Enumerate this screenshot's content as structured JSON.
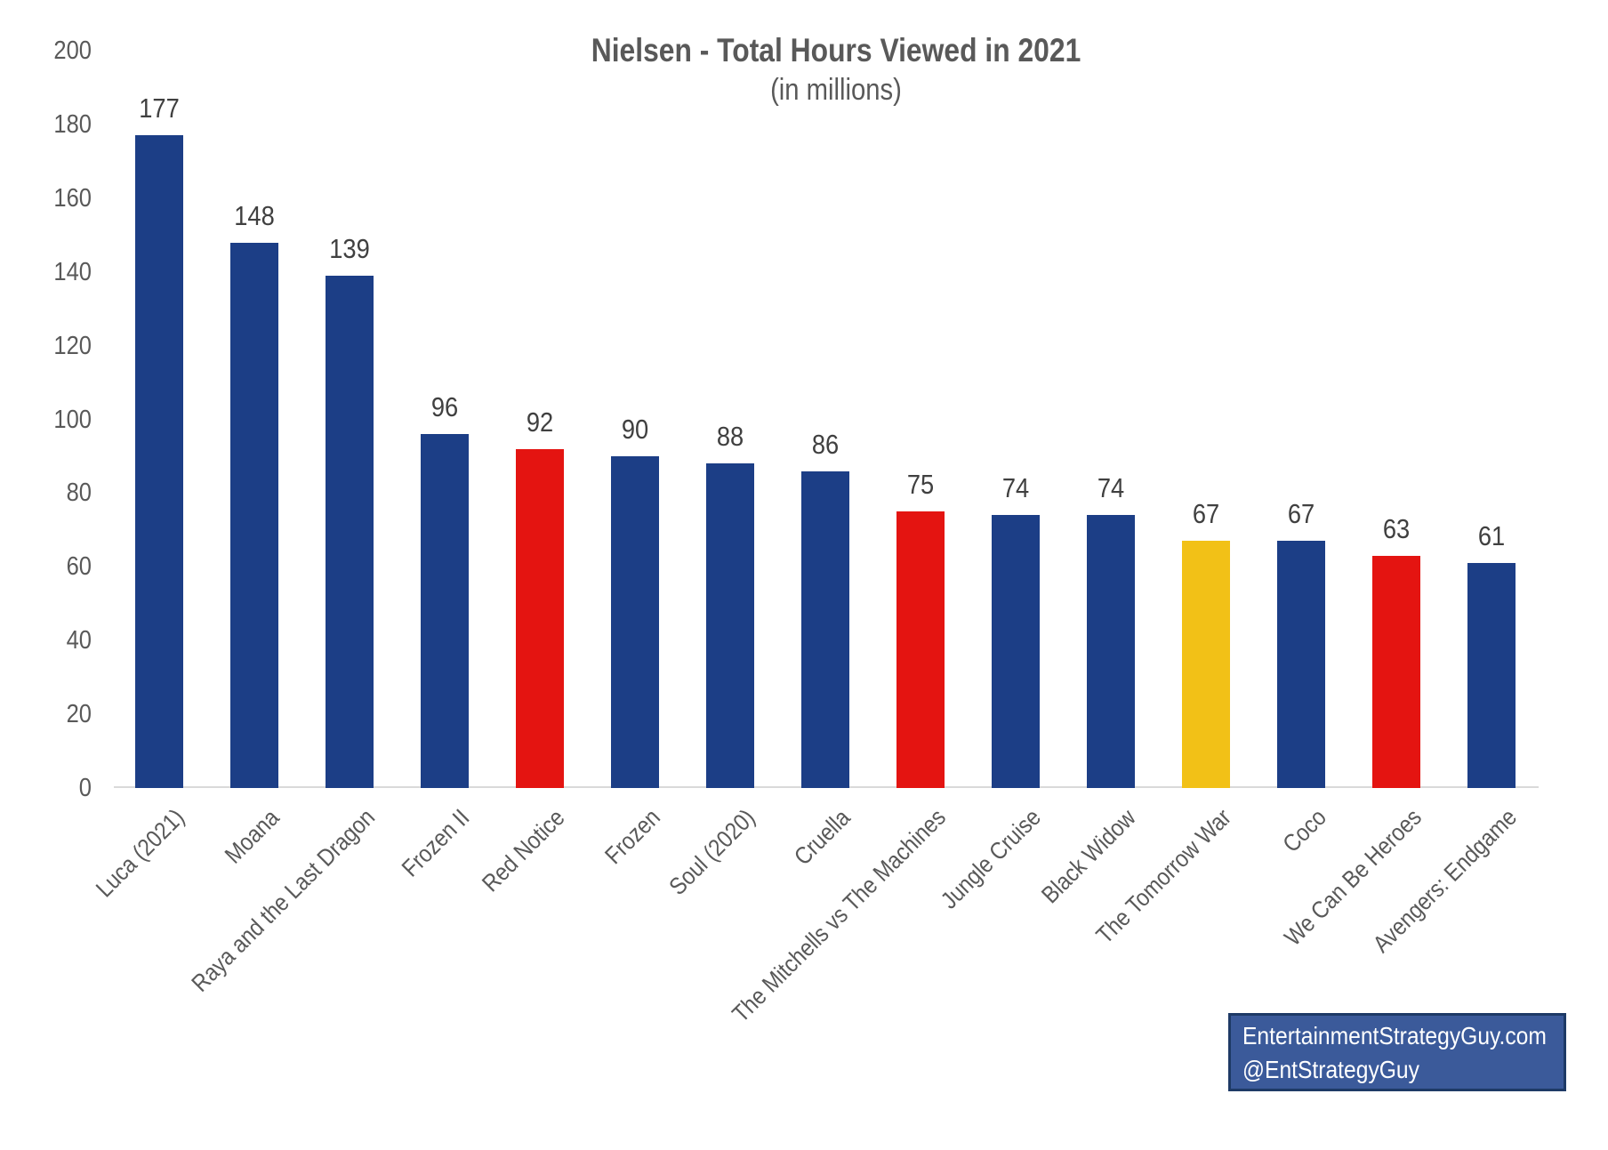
{
  "page": {
    "title": "Nielsen - Total Hours Viewed in 2021",
    "subtitle": "(in millions)"
  },
  "watermark": {
    "line1": "EntertainmentStrategyGuy.com",
    "line2": "@EntStrategyGuy",
    "bg_color": "#3B5A9A",
    "border_color": "#1E3A66",
    "text_color": "#FFFFFF"
  },
  "colors": {
    "title_text": "#595959",
    "axis_text": "#595959",
    "value_label_text": "#404040",
    "axis_line": "#D9D9D9"
  },
  "chart_data": {
    "type": "bar",
    "title": "Nielsen - Total Hours Viewed in 2021",
    "subtitle": "(in millions)",
    "categories": [
      "Luca (2021)",
      "Moana",
      "Raya and the Last Dragon",
      "Frozen II",
      "Red Notice",
      "Frozen",
      "Soul (2020)",
      "Cruella",
      "The Mitchells vs The Machines",
      "Jungle Cruise",
      "Black Widow",
      "The Tomorrow War",
      "Coco",
      "We Can Be Heroes",
      "Avengers: Endgame"
    ],
    "values": [
      177,
      148,
      139,
      96,
      92,
      90,
      88,
      86,
      75,
      74,
      74,
      67,
      67,
      63,
      61
    ],
    "bar_color_names": [
      "blue",
      "blue",
      "blue",
      "blue",
      "red",
      "blue",
      "blue",
      "blue",
      "red",
      "blue",
      "blue",
      "yellow",
      "blue",
      "red",
      "blue"
    ],
    "palette": {
      "blue": "#1C3E86",
      "red": "#E41411",
      "yellow": "#F2C117"
    },
    "xlabel": "",
    "ylabel": "",
    "ylim": [
      0,
      200
    ],
    "yticks": [
      0,
      20,
      40,
      60,
      80,
      100,
      120,
      140,
      160,
      180,
      200
    ],
    "grid": false,
    "legend": "none",
    "value_labels": "above bars",
    "x_tick_rotation_deg": 45
  }
}
